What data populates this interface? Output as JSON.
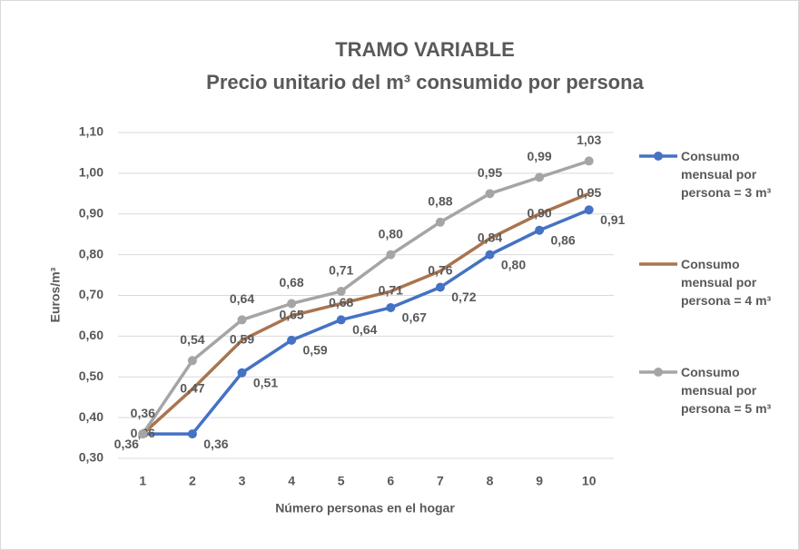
{
  "chart_data": {
    "type": "line",
    "title": "TRAMO VARIABLE",
    "subtitle": "Precio unitario del m³ consumido por persona",
    "x_label": "Número personas en el hogar",
    "y_label": "Euros/m³",
    "categories": [
      "1",
      "2",
      "3",
      "4",
      "5",
      "6",
      "7",
      "8",
      "9",
      "10"
    ],
    "ylim": [
      0.3,
      1.1
    ],
    "yticks": [
      {
        "value": 0.3,
        "label": "0,30"
      },
      {
        "value": 0.4,
        "label": "0,40"
      },
      {
        "value": 0.5,
        "label": "0,50"
      },
      {
        "value": 0.6,
        "label": "0,60"
      },
      {
        "value": 0.7,
        "label": "0,70"
      },
      {
        "value": 0.8,
        "label": "0,80"
      },
      {
        "value": 0.9,
        "label": "0,90"
      },
      {
        "value": 1.0,
        "label": "1,00"
      },
      {
        "value": 1.1,
        "label": "1,10"
      }
    ],
    "grid": true,
    "legend": "right",
    "series": [
      {
        "name": "Consumo mensual por persona = 3 m³",
        "color": "#4472c4",
        "markers": true,
        "values": [
          0.36,
          0.36,
          0.51,
          0.59,
          0.64,
          0.67,
          0.72,
          0.8,
          0.86,
          0.91
        ],
        "value_labels": [
          "0,36",
          "0,36",
          "0,51",
          "0,59",
          "0,64",
          "0,67",
          "0,72",
          "0,80",
          "0,86",
          "0,91"
        ]
      },
      {
        "name": "Consumo mensual por persona = 4 m³",
        "color": "#a9744f",
        "markers": false,
        "values": [
          0.36,
          0.47,
          0.59,
          0.65,
          0.68,
          0.71,
          0.76,
          0.84,
          0.9,
          0.95
        ],
        "value_labels": [
          "0,36",
          "0,47",
          "0,59",
          "0,65",
          "0,68",
          "0,71",
          "0,76",
          "0,84",
          "0,90",
          "0,95"
        ]
      },
      {
        "name": "Consumo mensual por persona = 5 m³",
        "color": "#a5a5a5",
        "markers": true,
        "values": [
          0.36,
          0.54,
          0.64,
          0.68,
          0.71,
          0.8,
          0.88,
          0.95,
          0.99,
          1.03
        ],
        "value_labels": [
          "0,36",
          "0,54",
          "0,64",
          "0,68",
          "0,71",
          "0,80",
          "0,88",
          "0,95",
          "0,99",
          "1,03"
        ]
      }
    ]
  }
}
